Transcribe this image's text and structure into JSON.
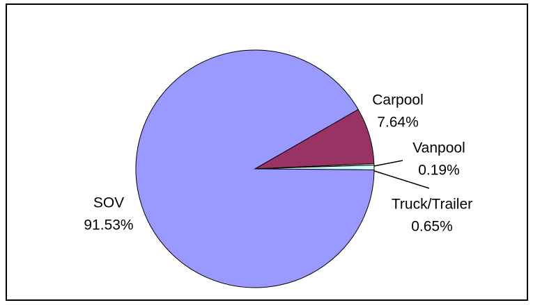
{
  "chart_data": {
    "type": "pie",
    "categories": [
      "SOV",
      "Carpool",
      "Vanpool",
      "Truck/Trailer"
    ],
    "values": [
      91.53,
      7.64,
      0.19,
      0.65
    ],
    "value_labels": [
      "91.53%",
      "7.64%",
      "0.19%",
      "0.65%"
    ],
    "colors": [
      "#9999ff",
      "#993366",
      "#ffffcc",
      "#ccffff"
    ]
  }
}
